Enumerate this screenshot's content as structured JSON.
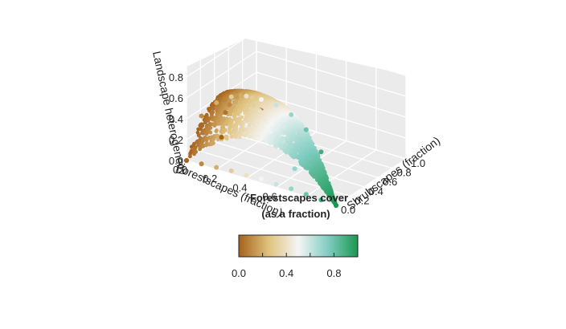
{
  "chart_data": {
    "type": "scatter",
    "subtype": "3d-scatter",
    "x_axis": {
      "label": "Forestscapes (fraction)",
      "ticks": [
        "0.0",
        "0.2",
        "0.4",
        "0.6",
        "0.8",
        "1.0"
      ],
      "range": [
        0,
        1
      ]
    },
    "y_axis": {
      "label": "Shrubscapes (fraction)",
      "ticks": [
        "0.0",
        "0.2",
        "0.4",
        "0.6",
        "0.8",
        "1.0"
      ],
      "range": [
        0,
        1
      ]
    },
    "z_axis": {
      "label": "Landscape heterogeneity",
      "ticks": [
        "0.0",
        "0.2",
        "0.4",
        "0.6",
        "0.8"
      ],
      "range": [
        0,
        0.9
      ]
    },
    "colorbar": {
      "title_line1": "Forestscapes cover",
      "title_line2": "(as a fraction)",
      "ticks": [
        "0.0",
        "0.4",
        "0.8"
      ],
      "range": [
        0,
        1
      ],
      "colors": [
        "#A6611A",
        "#DFC27D",
        "#F5F5F5",
        "#80CDC1",
        "#1A9850"
      ]
    },
    "colormap_variable": "Forestscapes (fraction)",
    "grid": true,
    "series": [
      {
        "x": [
          0.0,
          0.1,
          0.2,
          0.3,
          0.4,
          0.5,
          0.6,
          0.7,
          0.8,
          0.9,
          1.0
        ],
        "y": [
          0,
          0,
          0,
          0,
          0,
          0,
          0,
          0,
          0,
          0,
          0
        ],
        "z": [
          0.0,
          0.47,
          0.64,
          0.74,
          0.79,
          0.8,
          0.79,
          0.74,
          0.64,
          0.47,
          0.0
        ]
      },
      {
        "x": [
          0.0,
          0.1,
          0.2,
          0.3,
          0.4,
          0.5,
          0.6,
          0.7,
          0.8,
          0.9,
          1.0
        ],
        "y": [
          0,
          0,
          0,
          0,
          0,
          0,
          0,
          0,
          0,
          0,
          0
        ],
        "z": [
          0.0,
          0.01,
          0.02,
          0.03,
          0.03,
          0.04,
          0.03,
          0.03,
          0.02,
          0.01,
          0.0
        ]
      },
      {
        "x": [
          0.0,
          0.05,
          0.1,
          0.15,
          0.2,
          0.3,
          0.4,
          0.5,
          0.6,
          0.7
        ],
        "y": [
          0.5,
          0.45,
          0.4,
          0.4,
          0.35,
          0.3,
          0.2,
          0.15,
          0.1,
          0.05
        ],
        "z": [
          0.0,
          0.28,
          0.4,
          0.5,
          0.55,
          0.6,
          0.55,
          0.5,
          0.4,
          0.2
        ]
      }
    ]
  }
}
